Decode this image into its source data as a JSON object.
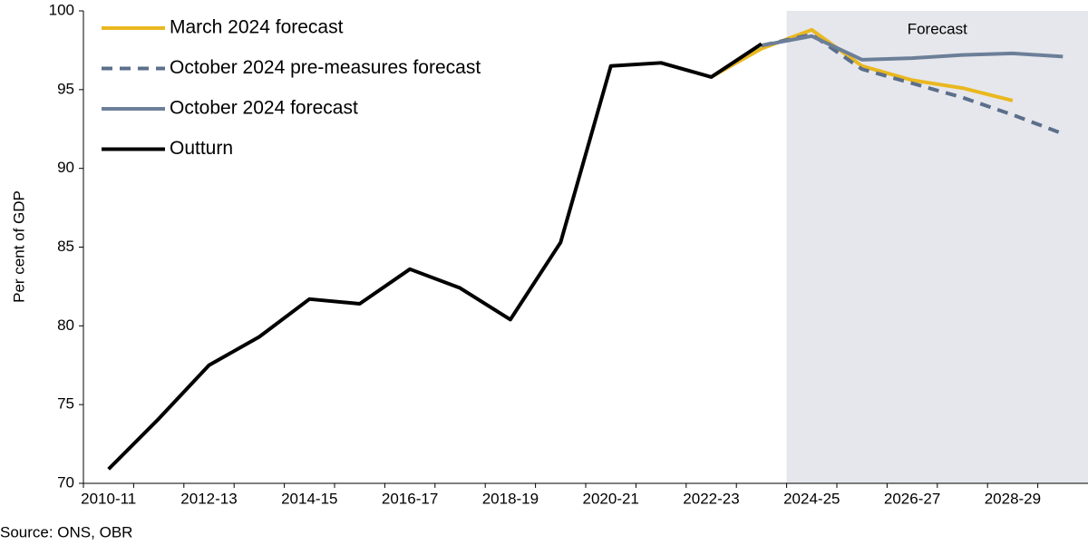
{
  "chart_data": {
    "type": "line",
    "y_label": "Per cent of GDP",
    "source": "Source: ONS, OBR",
    "annotation": "Forecast",
    "categories": [
      "2010-11",
      null,
      "2012-13",
      null,
      "2014-15",
      null,
      "2016-17",
      null,
      "2018-19",
      null,
      "2020-21",
      null,
      "2022-23",
      null,
      "2024-25",
      null,
      "2026-27",
      null,
      "2028-29",
      null
    ],
    "ylim": [
      70,
      100
    ],
    "yticks": [
      70,
      75,
      80,
      85,
      90,
      95,
      100
    ],
    "series": [
      {
        "name": "March 2024 forecast",
        "color": "#e9b820",
        "dash": false,
        "values": [
          null,
          null,
          null,
          null,
          null,
          null,
          null,
          null,
          null,
          null,
          null,
          null,
          95.8,
          97.6,
          98.8,
          96.5,
          95.6,
          95.1,
          94.3,
          null
        ]
      },
      {
        "name": "October 2024 pre-measures forecast",
        "color": "#5b6f8c",
        "dash": true,
        "values": [
          null,
          null,
          null,
          null,
          null,
          null,
          null,
          null,
          null,
          null,
          null,
          null,
          null,
          97.8,
          98.5,
          96.3,
          95.4,
          94.5,
          93.4,
          92.2
        ]
      },
      {
        "name": "October 2024 forecast",
        "color": "#6c7f99",
        "dash": false,
        "values": [
          null,
          null,
          null,
          null,
          null,
          null,
          null,
          null,
          null,
          null,
          null,
          null,
          null,
          97.8,
          98.4,
          96.9,
          97.0,
          97.2,
          97.3,
          97.1
        ]
      },
      {
        "name": "Outturn",
        "color": "#000000",
        "dash": false,
        "values": [
          70.9,
          74.1,
          77.5,
          79.3,
          81.7,
          81.4,
          83.6,
          82.4,
          80.4,
          85.3,
          96.5,
          96.7,
          95.8,
          97.9,
          null,
          null,
          null,
          null,
          null,
          null
        ]
      }
    ]
  }
}
